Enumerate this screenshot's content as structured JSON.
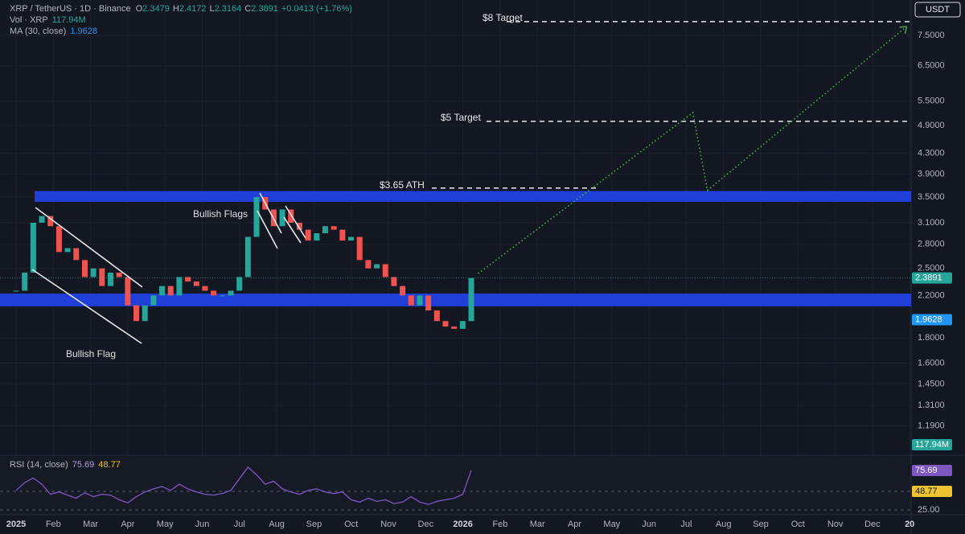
{
  "header": {
    "symbol": "XRP / TetherUS · 1D · Binance",
    "ohlc": [
      {
        "key": "O",
        "value": 2.3479
      },
      {
        "key": "H",
        "value": 2.4172
      },
      {
        "key": "L",
        "value": 2.3164
      },
      {
        "key": "C",
        "value": 2.3891
      }
    ],
    "change": "+0.0413 (+1.76%)",
    "volume_label": "Vol · XRP",
    "volume": "117.94M",
    "ma_label": "MA (30, close)",
    "ma": 1.9628
  },
  "currency": "USDT",
  "price_axis": {
    "log": true,
    "ylim": [
      1.04,
      8.86
    ],
    "ticks": [
      {
        "value": 7.5,
        "label": "7.5000"
      },
      {
        "value": 6.5,
        "label": "6.5000"
      },
      {
        "value": 5.5,
        "label": "5.5000"
      },
      {
        "value": 4.9,
        "label": "4.9000"
      },
      {
        "value": 4.3,
        "label": "4.3000"
      },
      {
        "value": 3.9,
        "label": "3.9000"
      },
      {
        "value": 3.5,
        "label": "3.5000"
      },
      {
        "value": 3.1,
        "label": "3.1000"
      },
      {
        "value": 2.8,
        "label": "2.8000"
      },
      {
        "value": 2.5,
        "label": "2.5000"
      },
      {
        "value": 2.2,
        "label": "2.2000"
      },
      {
        "value": 1.8,
        "label": "1.8000"
      },
      {
        "value": 1.6,
        "label": "1.6000"
      },
      {
        "value": 1.45,
        "label": "1.4500"
      },
      {
        "value": 1.31,
        "label": "1.3100"
      },
      {
        "value": 1.19,
        "label": "1.1900"
      }
    ]
  },
  "price_weekly": [
    2.25,
    2.45,
    3.1,
    3.2,
    3.05,
    2.7,
    2.75,
    2.6,
    2.4,
    2.5,
    2.3,
    2.45,
    2.4,
    2.1,
    1.95,
    2.1,
    2.2,
    2.3,
    2.2,
    2.4,
    2.35,
    2.3,
    2.25,
    2.2,
    2.2,
    2.25,
    2.4,
    2.9,
    3.5,
    3.3,
    3.05,
    3.3,
    3.1,
    3.0,
    2.85,
    2.95,
    3.05,
    3.0,
    2.85,
    2.9,
    2.6,
    2.5,
    2.55,
    2.4,
    2.3,
    2.2,
    2.1,
    2.2,
    2.05,
    1.95,
    1.9,
    1.88,
    1.95,
    2.3891
  ],
  "zones": [
    {
      "low": 3.42,
      "high": 3.6
    },
    {
      "low": 2.09,
      "high": 2.22
    }
  ],
  "levels": [
    {
      "label": "$8 Target",
      "price": 8
    },
    {
      "label": "$5 Target",
      "price": 5
    },
    {
      "label": "$3.65 ATH",
      "price": 3.65
    }
  ],
  "projection": {
    "week": [
      53.8,
      78.8,
      80.5,
      103.7
    ],
    "price": [
      2.44,
      5.21,
      3.61,
      7.82
    ]
  },
  "annotations": [
    "Bullish Flags",
    "Bullish Flag"
  ],
  "rsi": {
    "label": "RSI (14, close)",
    "value": 75.69,
    "ma": 48.77,
    "ylim": [
      18.75,
      91.2
    ],
    "low_label": {
      "value": 25,
      "label": "25.00"
    },
    "values": [
      50,
      60,
      66,
      58,
      45,
      48,
      44,
      40,
      47,
      42,
      45,
      44,
      38,
      34,
      42,
      48,
      52,
      55,
      50,
      58,
      52,
      48,
      45,
      44,
      46,
      50,
      65,
      80,
      70,
      58,
      62,
      52,
      48,
      45,
      50,
      52,
      48,
      46,
      48,
      38,
      35,
      40,
      36,
      38,
      33,
      35,
      42,
      35,
      32,
      36,
      38,
      40,
      45,
      75.69
    ]
  },
  "time_axis": [
    "2025",
    "Feb",
    "Mar",
    "Apr",
    "May",
    "Jun",
    "Jul",
    "Aug",
    "Sep",
    "Oct",
    "Nov",
    "Dec",
    "2026",
    "Feb",
    "Mar",
    "Apr",
    "May",
    "Jun",
    "Jul",
    "Aug",
    "Sep",
    "Oct",
    "Nov",
    "Dec",
    "20"
  ]
}
